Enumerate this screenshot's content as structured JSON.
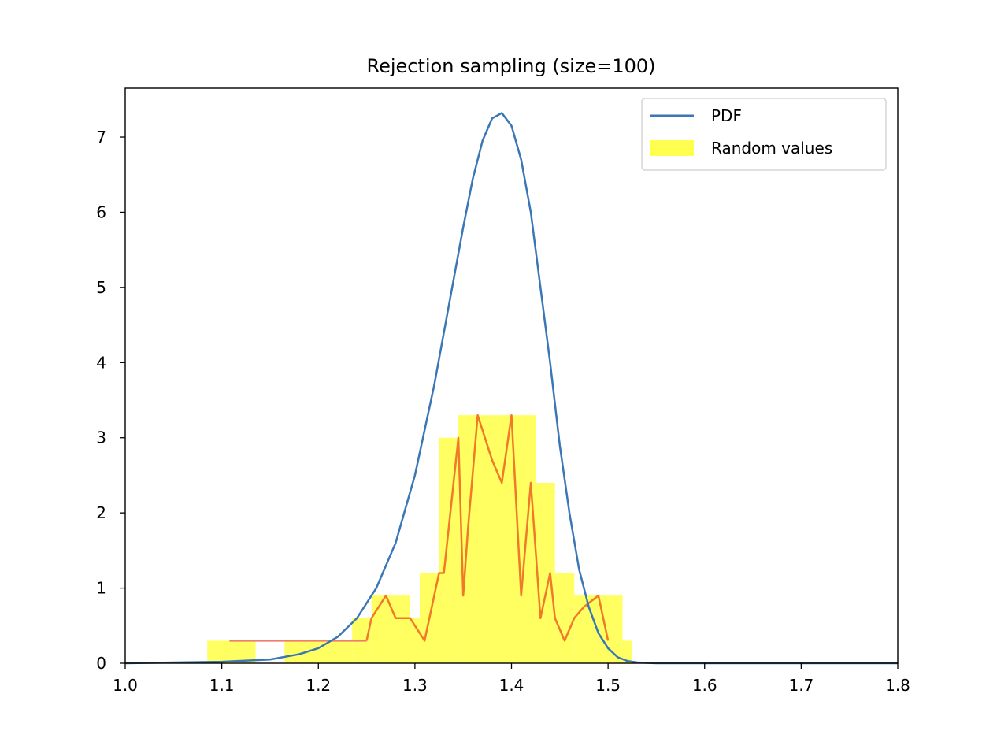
{
  "chart_data": {
    "type": "line",
    "title": "Rejection sampling (size=100)",
    "xlabel": "",
    "ylabel": "",
    "xlim": [
      1.0,
      1.8
    ],
    "ylim": [
      0,
      7.65
    ],
    "xticks": [
      "1.0",
      "1.1",
      "1.2",
      "1.3",
      "1.4",
      "1.5",
      "1.6",
      "1.7",
      "1.8"
    ],
    "yticks": [
      "0",
      "1",
      "2",
      "3",
      "4",
      "5",
      "6",
      "7"
    ],
    "grid": false,
    "legend_position": "top-right",
    "legend": [
      {
        "label": "PDF",
        "kind": "line",
        "color": "#3a77b4"
      },
      {
        "label": "Random values",
        "kind": "patch",
        "color": "#ffff50"
      }
    ],
    "colors": {
      "pdf": "#3a77b4",
      "histogram": "#ffff50",
      "overlay_line": "#f07a2a",
      "flat_segment": "#f07c6e"
    },
    "pdf_series": {
      "name": "PDF",
      "x": [
        1.0,
        1.1,
        1.15,
        1.18,
        1.2,
        1.22,
        1.24,
        1.26,
        1.28,
        1.3,
        1.32,
        1.34,
        1.35,
        1.36,
        1.37,
        1.38,
        1.39,
        1.4,
        1.41,
        1.42,
        1.43,
        1.44,
        1.45,
        1.46,
        1.47,
        1.48,
        1.49,
        1.5,
        1.51,
        1.52,
        1.53,
        1.55,
        1.8
      ],
      "y": [
        0.0,
        0.02,
        0.05,
        0.12,
        0.2,
        0.35,
        0.6,
        1.0,
        1.6,
        2.5,
        3.7,
        5.1,
        5.8,
        6.45,
        6.95,
        7.25,
        7.32,
        7.15,
        6.7,
        6.0,
        5.0,
        4.0,
        2.9,
        2.0,
        1.25,
        0.75,
        0.4,
        0.2,
        0.08,
        0.03,
        0.01,
        0.0,
        0.0
      ]
    },
    "histogram": {
      "name": "Random values",
      "bins": [
        {
          "x0": 1.085,
          "x1": 1.135,
          "value": 0.3
        },
        {
          "x0": 1.165,
          "x1": 1.235,
          "value": 0.3
        },
        {
          "x0": 1.235,
          "x1": 1.255,
          "value": 0.6
        },
        {
          "x0": 1.255,
          "x1": 1.295,
          "value": 0.9
        },
        {
          "x0": 1.295,
          "x1": 1.305,
          "value": 0.6
        },
        {
          "x0": 1.305,
          "x1": 1.325,
          "value": 1.2
        },
        {
          "x0": 1.325,
          "x1": 1.345,
          "value": 3.0
        },
        {
          "x0": 1.345,
          "x1": 1.425,
          "value": 3.3
        },
        {
          "x0": 1.425,
          "x1": 1.445,
          "value": 2.4
        },
        {
          "x0": 1.445,
          "x1": 1.465,
          "value": 1.2
        },
        {
          "x0": 1.465,
          "x1": 1.515,
          "value": 0.9
        },
        {
          "x0": 1.515,
          "x1": 1.525,
          "value": 0.3
        }
      ]
    },
    "flat_segment": {
      "x": [
        1.108,
        1.25
      ],
      "y": [
        0.3,
        0.3
      ]
    },
    "overlay_series": {
      "x": [
        1.25,
        1.255,
        1.265,
        1.27,
        1.28,
        1.285,
        1.29,
        1.295,
        1.31,
        1.325,
        1.33,
        1.345,
        1.35,
        1.355,
        1.365,
        1.38,
        1.39,
        1.4,
        1.41,
        1.42,
        1.43,
        1.44,
        1.445,
        1.455,
        1.465,
        1.475,
        1.49,
        1.5
      ],
      "y": [
        0.3,
        0.6,
        0.8,
        0.9,
        0.6,
        0.6,
        0.6,
        0.6,
        0.3,
        1.2,
        1.2,
        3.0,
        0.9,
        1.8,
        3.3,
        2.7,
        2.4,
        3.3,
        0.9,
        2.4,
        0.6,
        1.2,
        0.6,
        0.3,
        0.6,
        0.75,
        0.9,
        0.3
      ]
    }
  }
}
